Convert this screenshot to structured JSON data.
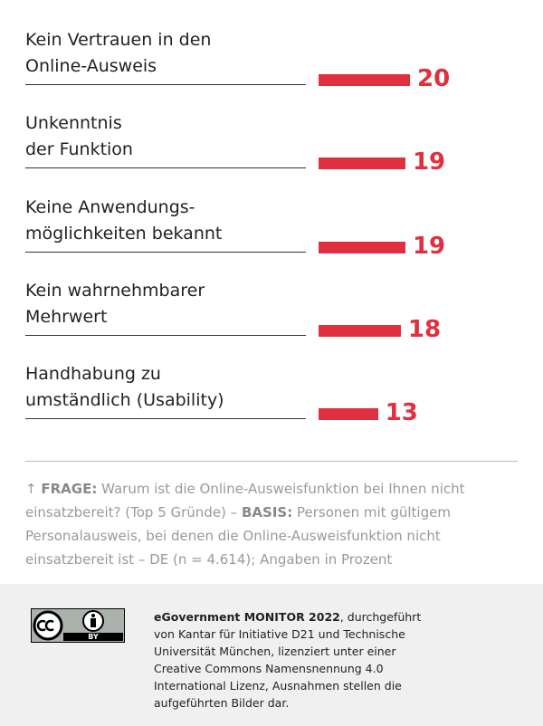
{
  "chart_data": {
    "type": "bar",
    "orientation": "horizontal",
    "categories": [
      "Kein Vertrauen in den\nOnline-Ausweis",
      "Unkenntnis\nder Funktion",
      "Keine Anwendungs-\nmöglichkeiten bekannt",
      "Kein wahrnehmbarer\nMehrwert",
      "Handhabung zu\numständlich (Usability)"
    ],
    "values": [
      20,
      19,
      19,
      18,
      13
    ],
    "color": "#e0303f"
  },
  "footnote": {
    "marker": "↑",
    "question_label": "FRAGE:",
    "question": "Warum ist die Online-Ausweisfunktion bei Ihnen nicht einsatzbereit? (Top 5 Gründe) –",
    "basis_label": "BASIS:",
    "basis": "Personen mit gültigem Personalausweis, bei denen die Online-Ausweisfunktion nicht einsatzbereit ist – DE (n = 4.614); Angaben in Prozent"
  },
  "license": {
    "icon_label": "BY",
    "title": "eGovernment MONITOR 2022",
    "text": ", durchgeführt von Kantar für Initiative D21 und Technische Universität München, lizenziert unter einer Creative Commons Namensnennung 4.0 International Lizenz, Ausnahmen stellen die aufgeführten Bilder dar."
  }
}
